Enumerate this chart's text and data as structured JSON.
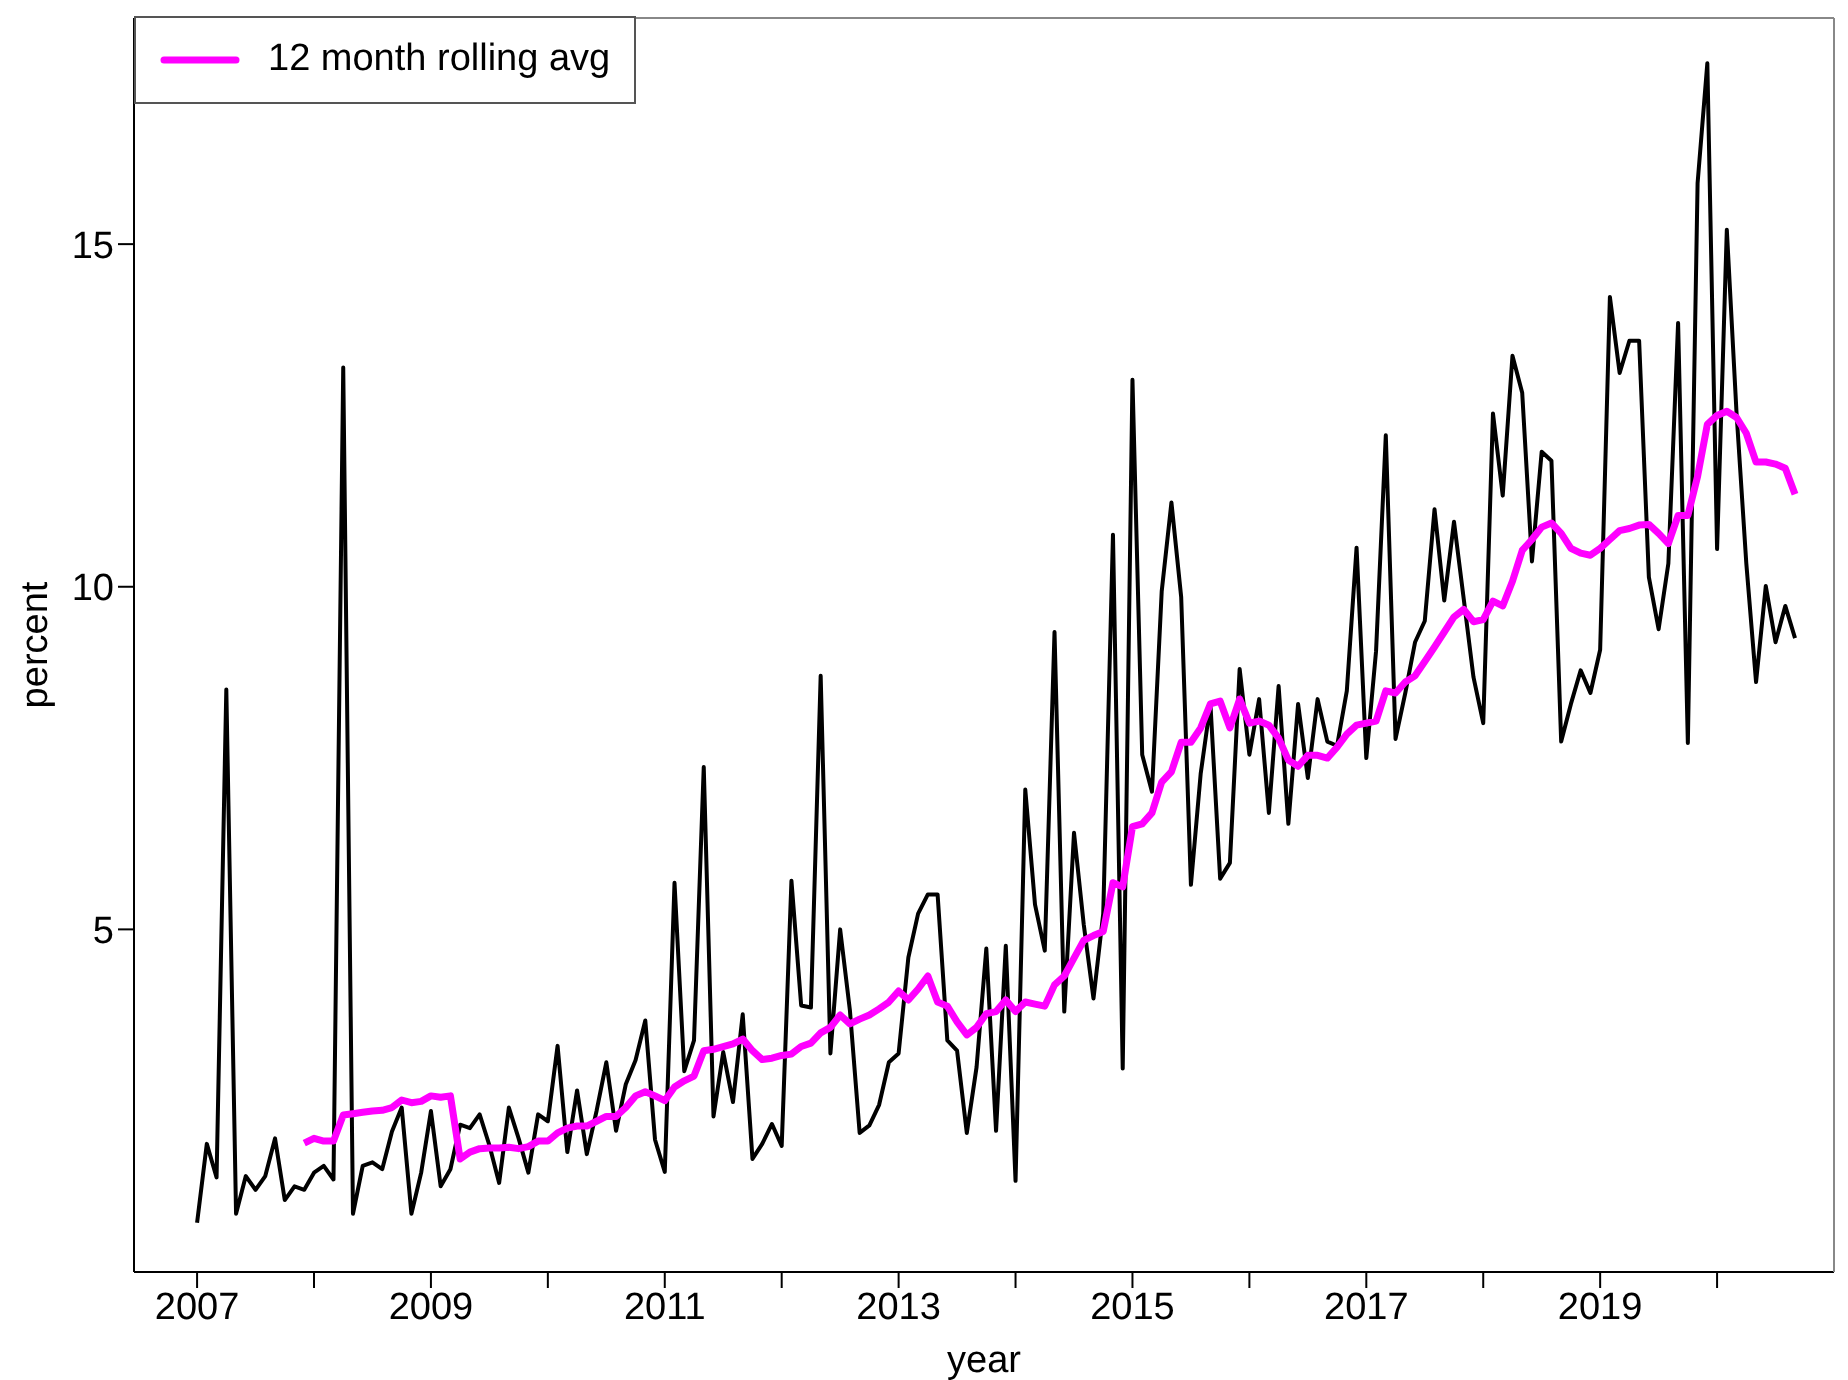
{
  "chart_data": {
    "type": "line",
    "xlabel": "year",
    "ylabel": "percent",
    "x": [
      "2007-01",
      "2007-02",
      "2007-03",
      "2007-04",
      "2007-05",
      "2007-06",
      "2007-07",
      "2007-08",
      "2007-09",
      "2007-10",
      "2007-11",
      "2007-12",
      "2008-01",
      "2008-02",
      "2008-03",
      "2008-04",
      "2008-05",
      "2008-06",
      "2008-07",
      "2008-08",
      "2008-09",
      "2008-10",
      "2008-11",
      "2008-12",
      "2009-01",
      "2009-02",
      "2009-03",
      "2009-04",
      "2009-05",
      "2009-06",
      "2009-07",
      "2009-08",
      "2009-09",
      "2009-10",
      "2009-11",
      "2009-12",
      "2010-01",
      "2010-02",
      "2010-03",
      "2010-04",
      "2010-05",
      "2010-06",
      "2010-07",
      "2010-08",
      "2010-09",
      "2010-10",
      "2010-11",
      "2010-12",
      "2011-01",
      "2011-02",
      "2011-03",
      "2011-04",
      "2011-05",
      "2011-06",
      "2011-07",
      "2011-08",
      "2011-09",
      "2011-10",
      "2011-11",
      "2011-12",
      "2012-01",
      "2012-02",
      "2012-03",
      "2012-04",
      "2012-05",
      "2012-06",
      "2012-07",
      "2012-08",
      "2012-09",
      "2012-10",
      "2012-11",
      "2012-12",
      "2013-01",
      "2013-02",
      "2013-03",
      "2013-04",
      "2013-05",
      "2013-06",
      "2013-07",
      "2013-08",
      "2013-09",
      "2013-10",
      "2013-11",
      "2013-12",
      "2014-01",
      "2014-02",
      "2014-03",
      "2014-04",
      "2014-05",
      "2014-06",
      "2014-07",
      "2014-08",
      "2014-09",
      "2014-10",
      "2014-11",
      "2014-12",
      "2015-01",
      "2015-02",
      "2015-03",
      "2015-04",
      "2015-05",
      "2015-06",
      "2015-07",
      "2015-08",
      "2015-09",
      "2015-10",
      "2015-11",
      "2015-12",
      "2016-01",
      "2016-02",
      "2016-03",
      "2016-04",
      "2016-05",
      "2016-06",
      "2016-07",
      "2016-08",
      "2016-09",
      "2016-10",
      "2016-11",
      "2016-12",
      "2017-01",
      "2017-02",
      "2017-03",
      "2017-04",
      "2017-05",
      "2017-06",
      "2017-07",
      "2017-08",
      "2017-09",
      "2017-10",
      "2017-11",
      "2017-12",
      "2018-01",
      "2018-02",
      "2018-03",
      "2018-04",
      "2018-05",
      "2018-06",
      "2018-07",
      "2018-08",
      "2018-09",
      "2018-10",
      "2018-11",
      "2018-12",
      "2019-01",
      "2019-02",
      "2019-03",
      "2019-04",
      "2019-05",
      "2019-06",
      "2019-07",
      "2019-08",
      "2019-09",
      "2019-10",
      "2019-11",
      "2019-12",
      "2020-01",
      "2020-02",
      "2020-03",
      "2020-04",
      "2020-05",
      "2020-06",
      "2020-07",
      "2020-08",
      "2020-09"
    ],
    "series": [
      {
        "color": "#000000",
        "values": [
          0.72,
          1.87,
          1.38,
          8.5,
          0.85,
          1.4,
          1.2,
          1.4,
          1.95,
          1.05,
          1.25,
          1.2,
          1.45,
          1.55,
          1.35,
          13.2,
          0.85,
          1.55,
          1.6,
          1.5,
          2.05,
          2.4,
          0.85,
          1.45,
          2.35,
          1.25,
          1.5,
          2.15,
          2.1,
          2.3,
          1.85,
          1.3,
          2.4,
          1.95,
          1.45,
          2.3,
          2.2,
          3.3,
          1.75,
          2.65,
          1.72,
          2.35,
          3.06,
          2.06,
          2.74,
          3.09,
          3.67,
          1.93,
          1.46,
          5.68,
          2.93,
          3.38,
          7.37,
          2.27,
          3.21,
          2.48,
          3.76,
          1.65,
          1.87,
          2.16,
          1.84,
          5.71,
          3.89,
          3.86,
          8.7,
          3.19,
          5.0,
          3.82,
          2.03,
          2.14,
          2.44,
          3.06,
          3.19,
          4.59,
          5.23,
          5.51,
          5.51,
          3.38,
          3.23,
          2.03,
          2.99,
          4.72,
          2.06,
          4.76,
          1.33,
          7.04,
          5.36,
          4.69,
          9.34,
          3.8,
          6.41,
          5.07,
          3.99,
          5.23,
          10.76,
          2.97,
          13.02,
          7.55,
          7.01,
          9.93,
          11.23,
          9.85,
          5.65,
          7.27,
          8.29,
          5.74,
          5.97,
          8.8,
          7.55,
          8.36,
          6.7,
          8.55,
          6.54,
          8.29,
          7.21,
          8.36,
          7.74,
          7.68,
          8.48,
          10.57,
          7.5,
          9.06,
          12.21,
          7.78,
          8.45,
          9.19,
          9.5,
          11.13,
          9.8,
          10.95,
          9.82,
          8.68,
          8.01,
          12.53,
          11.33,
          13.37,
          12.83,
          10.37,
          11.97,
          11.84,
          7.74,
          8.29,
          8.78,
          8.45,
          9.08,
          14.23,
          13.12,
          13.59,
          13.59,
          10.14,
          9.38,
          10.34,
          13.85,
          7.72,
          15.89,
          17.64,
          10.55,
          15.21,
          12.53,
          10.34,
          8.61,
          10.01,
          9.19,
          9.72,
          9.25
        ]
      },
      {
        "name": "12 month rolling avg",
        "color": "#ff00ff",
        "values": [
          null,
          null,
          null,
          null,
          null,
          null,
          null,
          null,
          null,
          null,
          null,
          1.88,
          1.95,
          1.91,
          1.91,
          2.29,
          2.31,
          2.33,
          2.35,
          2.36,
          2.4,
          2.51,
          2.47,
          2.49,
          2.57,
          2.55,
          2.57,
          1.65,
          1.75,
          1.8,
          1.81,
          1.81,
          1.82,
          1.8,
          1.83,
          1.91,
          1.91,
          2.03,
          2.1,
          2.13,
          2.13,
          2.2,
          2.27,
          2.27,
          2.4,
          2.57,
          2.63,
          2.57,
          2.5,
          2.7,
          2.79,
          2.86,
          3.23,
          3.25,
          3.29,
          3.33,
          3.4,
          3.23,
          3.1,
          3.12,
          3.16,
          3.18,
          3.29,
          3.34,
          3.49,
          3.57,
          3.75,
          3.62,
          3.69,
          3.75,
          3.84,
          3.94,
          4.1,
          3.97,
          4.13,
          4.32,
          3.94,
          3.88,
          3.65,
          3.46,
          3.57,
          3.77,
          3.8,
          3.97,
          3.8,
          3.94,
          3.91,
          3.88,
          4.19,
          4.32,
          4.58,
          4.84,
          4.91,
          4.97,
          5.68,
          5.62,
          6.5,
          6.54,
          6.7,
          7.15,
          7.3,
          7.73,
          7.73,
          7.94,
          8.29,
          8.33,
          7.94,
          8.36,
          8.01,
          8.04,
          7.98,
          7.79,
          7.47,
          7.38,
          7.54,
          7.54,
          7.5,
          7.66,
          7.85,
          7.98,
          8.01,
          8.04,
          8.48,
          8.45,
          8.61,
          8.7,
          8.91,
          9.12,
          9.34,
          9.56,
          9.67,
          9.49,
          9.52,
          9.79,
          9.72,
          10.08,
          10.53,
          10.69,
          10.87,
          10.93,
          10.78,
          10.56,
          10.49,
          10.46,
          10.56,
          10.69,
          10.82,
          10.85,
          10.9,
          10.91,
          10.78,
          10.63,
          11.04,
          11.04,
          11.61,
          12.37,
          12.5,
          12.56,
          12.47,
          12.24,
          11.82,
          11.82,
          11.79,
          11.73,
          11.35
        ]
      }
    ],
    "xlim": [
      "2006-06-17",
      "2021-01-01"
    ],
    "xticks": [
      {
        "value": "2007-01-01",
        "label": "2007"
      },
      {
        "value": "2008-01-01",
        "label": null
      },
      {
        "value": "2009-01-01",
        "label": "2009"
      },
      {
        "value": "2010-01-01",
        "label": null
      },
      {
        "value": "2011-01-01",
        "label": "2011"
      },
      {
        "value": "2012-01-01",
        "label": null
      },
      {
        "value": "2013-01-01",
        "label": "2013"
      },
      {
        "value": "2014-01-01",
        "label": null
      },
      {
        "value": "2015-01-01",
        "label": "2015"
      },
      {
        "value": "2016-01-01",
        "label": null
      },
      {
        "value": "2017-01-01",
        "label": "2017"
      },
      {
        "value": "2018-01-01",
        "label": null
      },
      {
        "value": "2019-01-01",
        "label": "2019"
      },
      {
        "value": "2020-01-01",
        "label": null
      }
    ],
    "ylim": [
      0,
      18.3
    ],
    "yticks": [
      5,
      10,
      15
    ],
    "grid": false,
    "legend": "top left",
    "marker": "none",
    "line_style": "solid"
  }
}
